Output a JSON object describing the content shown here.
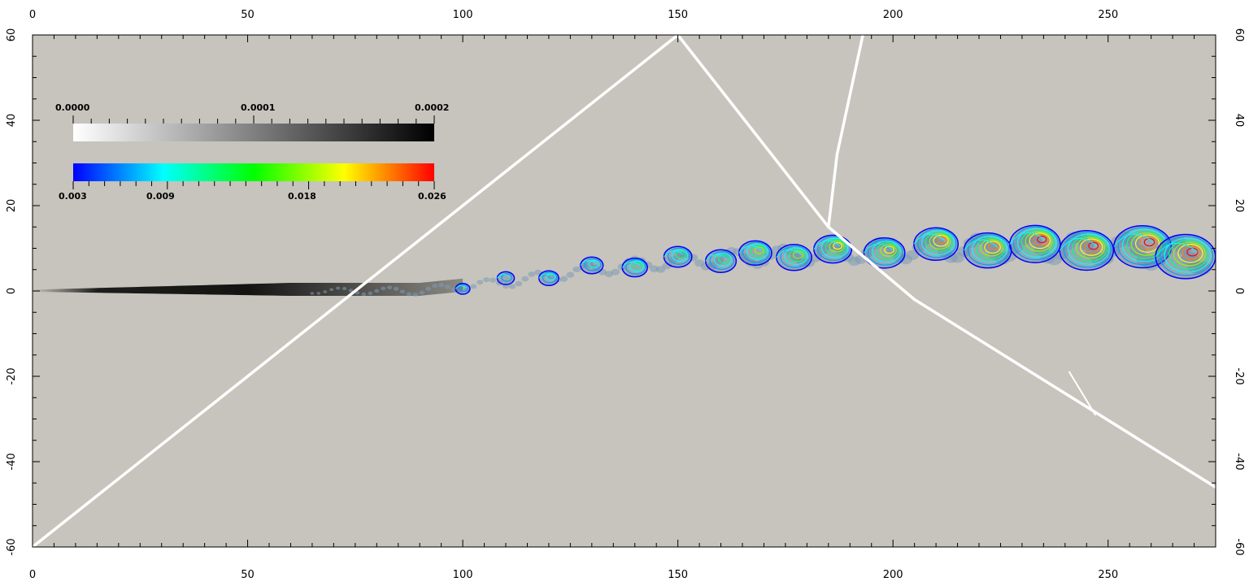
{
  "chart_data": {
    "type": "heatmap",
    "title": "",
    "xlabel": "",
    "ylabel": "",
    "xlim": [
      0,
      275
    ],
    "ylim": [
      -60,
      60
    ],
    "x_ticks": [
      0,
      50,
      100,
      150,
      200,
      250
    ],
    "y_ticks": [
      -60,
      -40,
      -20,
      0,
      20,
      40,
      60
    ],
    "background_color": "#c6c4bc",
    "grayscale_colorbar": {
      "labels": [
        "0.0000",
        "0.0001",
        "0.0002"
      ],
      "range": [
        0.0,
        0.0002
      ],
      "colors": [
        "#ffffff",
        "#000000"
      ]
    },
    "color_colorbar": {
      "labels": [
        "0.003",
        "0.009",
        "0.018",
        "0.026"
      ],
      "range": [
        0.003,
        0.026
      ],
      "colors": [
        "#0000ff",
        "#00ffff",
        "#00ff00",
        "#ffff00",
        "#ff0000"
      ]
    },
    "shock_lines": [
      {
        "points": [
          [
            0,
            -60
          ],
          [
            150,
            60
          ]
        ]
      },
      {
        "points": [
          [
            150,
            60
          ],
          [
            185,
            15
          ],
          [
            205,
            -2
          ],
          [
            275,
            -46
          ]
        ]
      },
      {
        "points": [
          [
            193,
            60
          ],
          [
            187,
            32
          ],
          [
            185,
            15
          ]
        ]
      },
      {
        "points": [
          [
            241,
            -19
          ],
          [
            247,
            -29
          ]
        ]
      }
    ],
    "jet_centerline": [
      [
        0,
        0
      ],
      [
        60,
        0
      ],
      [
        90,
        0
      ],
      [
        110,
        2
      ],
      [
        130,
        5
      ],
      [
        150,
        7
      ],
      [
        170,
        8
      ],
      [
        190,
        9
      ],
      [
        210,
        10
      ],
      [
        230,
        10
      ],
      [
        250,
        10
      ],
      [
        275,
        8
      ]
    ]
  }
}
